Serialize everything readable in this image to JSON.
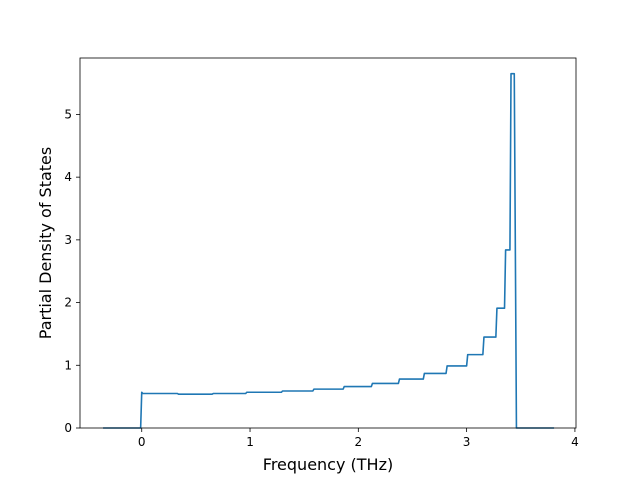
{
  "chart_data": {
    "type": "line",
    "title": "",
    "xlabel": "Frequency (THz)",
    "ylabel": "Partial Density of States",
    "xlim": [
      -0.57,
      4.01
    ],
    "ylim": [
      0,
      5.9
    ],
    "xticks": [
      0,
      1,
      2,
      3,
      4
    ],
    "xtick_labels": [
      "0",
      "1",
      "2",
      "3",
      "4"
    ],
    "yticks": [
      0,
      1,
      2,
      3,
      4,
      5
    ],
    "ytick_labels": [
      "0",
      "1",
      "2",
      "3",
      "4",
      "5"
    ],
    "grid": false,
    "legend": "none",
    "line_color": "#1f77b4",
    "series": [
      {
        "x": [
          -0.35,
          -0.01,
          0.0,
          0.01,
          0.33,
          0.34,
          0.65,
          0.66,
          0.96,
          0.97,
          1.29,
          1.3,
          1.58,
          1.59,
          1.86,
          1.87,
          2.12,
          2.13,
          2.37,
          2.38,
          2.6,
          2.61,
          2.81,
          2.82,
          3.0,
          3.01,
          3.15,
          3.16,
          3.27,
          3.28,
          3.35,
          3.36,
          3.4,
          3.41,
          3.43,
          3.44,
          3.46,
          3.47,
          3.8
        ],
        "y": [
          0.0,
          0.0,
          0.57,
          0.55,
          0.55,
          0.54,
          0.54,
          0.55,
          0.55,
          0.57,
          0.57,
          0.59,
          0.59,
          0.62,
          0.62,
          0.66,
          0.66,
          0.71,
          0.71,
          0.78,
          0.78,
          0.87,
          0.87,
          0.99,
          0.99,
          1.17,
          1.17,
          1.45,
          1.45,
          1.91,
          1.91,
          2.84,
          2.84,
          5.65,
          5.65,
          5.65,
          0.0,
          0.0,
          0.0
        ]
      }
    ]
  }
}
